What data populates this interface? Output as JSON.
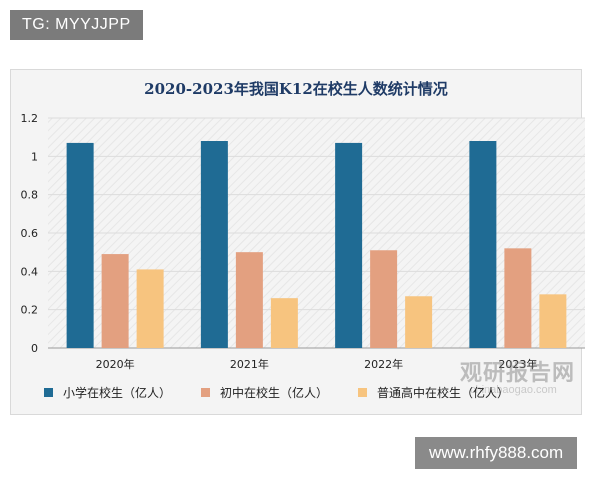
{
  "badge_top": "TG: MYYJJPP",
  "badge_bottom": "www.rhfy888.com",
  "watermark": {
    "logo": "观研报告网",
    "url": "chinabaogao.com"
  },
  "colors": {
    "primary": "#1f6b94",
    "junior": "#e3a080",
    "senior": "#f7c47f",
    "grid": "#dcdcdc",
    "title": "#1f3b66"
  },
  "chart_data": {
    "type": "bar",
    "title": "2020-2023年我国K12在校生人数统计情况",
    "xlabel": "",
    "ylabel": "",
    "categories": [
      "2020年",
      "2021年",
      "2022年",
      "2023年"
    ],
    "series": [
      {
        "name": "小学在校生（亿人）",
        "values": [
          1.07,
          1.08,
          1.07,
          1.08
        ]
      },
      {
        "name": "初中在校生（亿人）",
        "values": [
          0.49,
          0.5,
          0.51,
          0.52
        ]
      },
      {
        "name": "普通高中在校生（亿人）",
        "values": [
          0.41,
          0.26,
          0.27,
          0.28
        ]
      }
    ],
    "ylim": [
      0,
      1.2
    ],
    "yticks": [
      "0",
      "0.2",
      "0.4",
      "0.6",
      "0.8",
      "1",
      "1.2"
    ],
    "grid": true,
    "legend_position": "bottom"
  }
}
